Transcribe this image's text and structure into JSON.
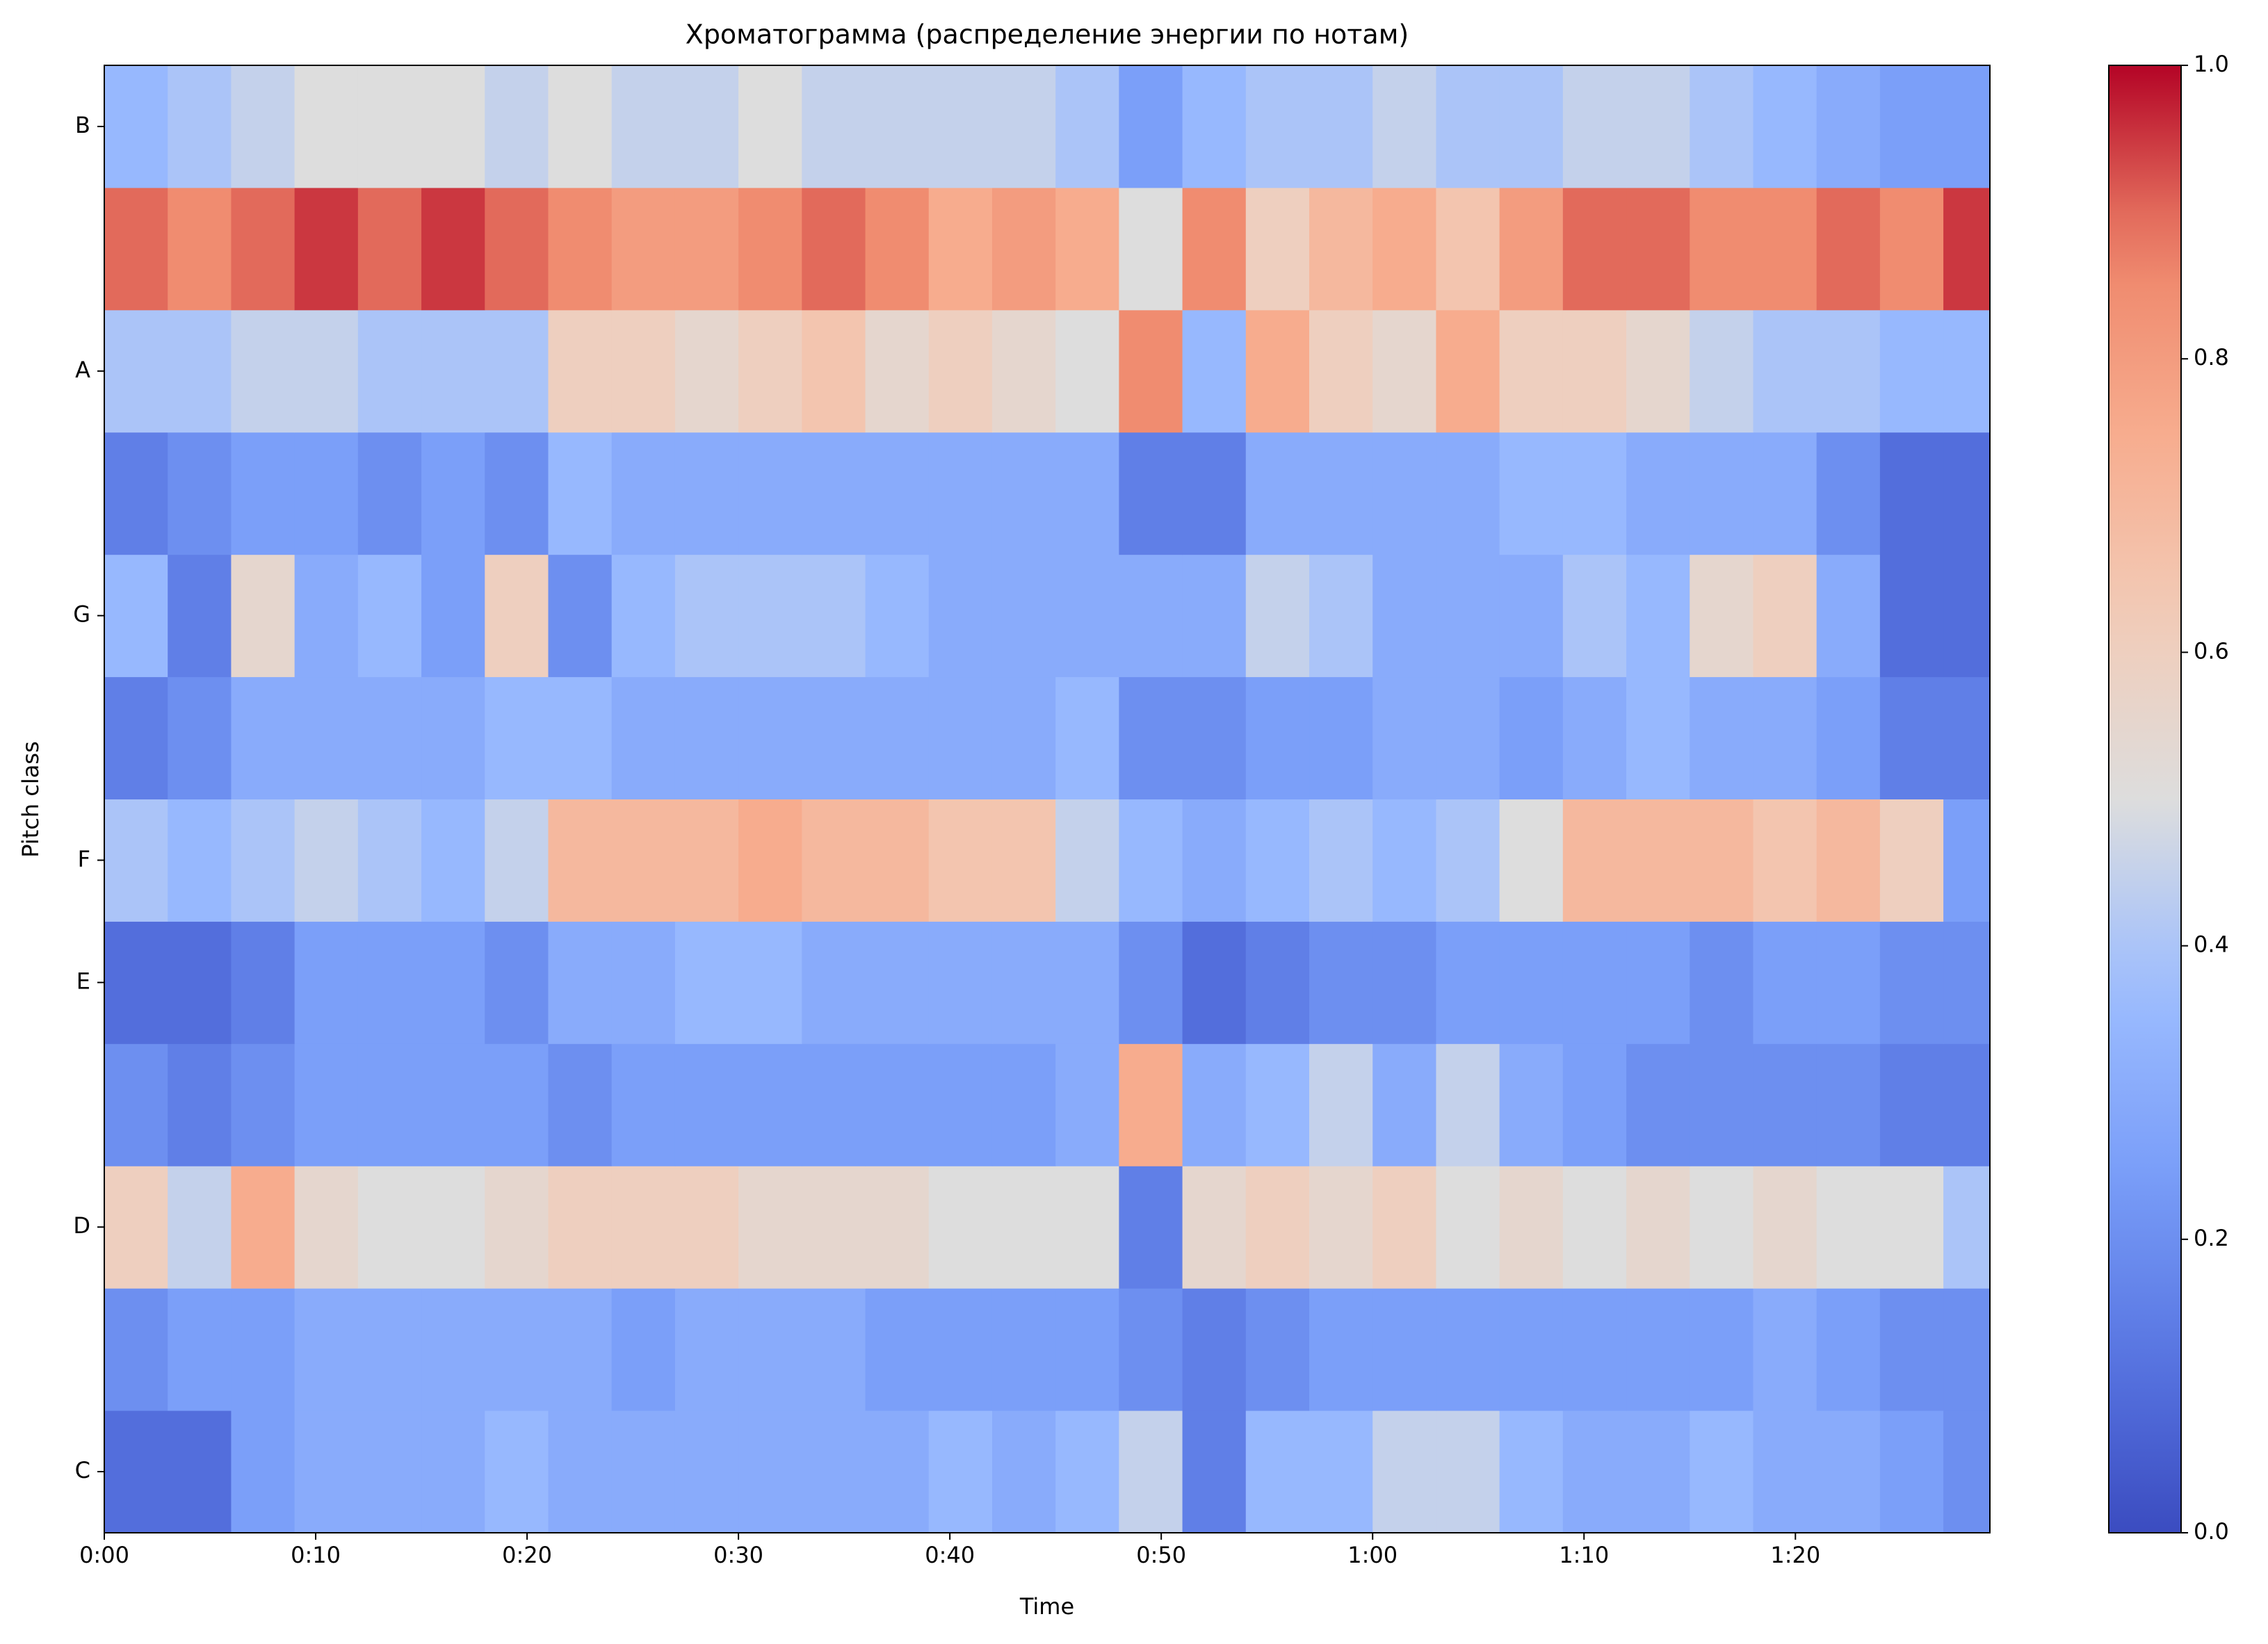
{
  "chart_data": {
    "type": "heatmap",
    "title": "Хроматограмма (распределение энергии по нотам)",
    "x_label": "Time",
    "y_label": "Pitch class",
    "colormap": "coolwarm",
    "x_bins": [
      0,
      3,
      6,
      9,
      12,
      15,
      18,
      21,
      24,
      27,
      30,
      33,
      36,
      39,
      42,
      45,
      48,
      51,
      54,
      57,
      60,
      63,
      66,
      69,
      72,
      75,
      78,
      81,
      84,
      87,
      89.2
    ],
    "xlim": [
      0,
      89.2
    ],
    "xticks": [
      {
        "value": 0,
        "label": "0:00"
      },
      {
        "value": 10,
        "label": "0:10"
      },
      {
        "value": 20,
        "label": "0:20"
      },
      {
        "value": 30,
        "label": "0:30"
      },
      {
        "value": 40,
        "label": "0:40"
      },
      {
        "value": 50,
        "label": "0:50"
      },
      {
        "value": 60,
        "label": "1:00"
      },
      {
        "value": 70,
        "label": "1:10"
      },
      {
        "value": 80,
        "label": "1:20"
      }
    ],
    "y_categories": [
      "C",
      null,
      "D",
      null,
      "E",
      "F",
      null,
      "G",
      null,
      "A",
      null,
      "B"
    ],
    "z": [
      [
        0.1,
        0.1,
        0.25,
        0.3,
        0.3,
        0.3,
        0.35,
        0.3,
        0.3,
        0.3,
        0.3,
        0.3,
        0.3,
        0.35,
        0.3,
        0.35,
        0.45,
        0.15,
        0.35,
        0.35,
        0.45,
        0.45,
        0.35,
        0.3,
        0.3,
        0.35,
        0.3,
        0.3,
        0.25,
        0.2
      ],
      [
        0.2,
        0.25,
        0.25,
        0.3,
        0.3,
        0.3,
        0.3,
        0.3,
        0.25,
        0.3,
        0.3,
        0.3,
        0.25,
        0.25,
        0.25,
        0.25,
        0.2,
        0.15,
        0.2,
        0.25,
        0.25,
        0.25,
        0.25,
        0.25,
        0.25,
        0.25,
        0.3,
        0.25,
        0.2,
        0.2
      ],
      [
        0.6,
        0.45,
        0.75,
        0.55,
        0.5,
        0.5,
        0.55,
        0.6,
        0.6,
        0.6,
        0.55,
        0.55,
        0.55,
        0.5,
        0.5,
        0.5,
        0.15,
        0.55,
        0.6,
        0.55,
        0.6,
        0.5,
        0.55,
        0.5,
        0.55,
        0.5,
        0.55,
        0.5,
        0.5,
        0.4
      ],
      [
        0.2,
        0.15,
        0.2,
        0.25,
        0.25,
        0.25,
        0.25,
        0.2,
        0.25,
        0.25,
        0.25,
        0.25,
        0.25,
        0.25,
        0.25,
        0.3,
        0.75,
        0.3,
        0.35,
        0.45,
        0.3,
        0.45,
        0.3,
        0.25,
        0.2,
        0.2,
        0.2,
        0.2,
        0.15,
        0.15
      ],
      [
        0.1,
        0.1,
        0.15,
        0.25,
        0.25,
        0.25,
        0.2,
        0.3,
        0.3,
        0.35,
        0.35,
        0.3,
        0.3,
        0.3,
        0.3,
        0.3,
        0.2,
        0.1,
        0.15,
        0.2,
        0.2,
        0.25,
        0.25,
        0.25,
        0.25,
        0.2,
        0.25,
        0.25,
        0.2,
        0.2
      ],
      [
        0.4,
        0.35,
        0.4,
        0.45,
        0.4,
        0.35,
        0.45,
        0.7,
        0.7,
        0.7,
        0.75,
        0.7,
        0.7,
        0.65,
        0.65,
        0.45,
        0.35,
        0.3,
        0.35,
        0.4,
        0.35,
        0.4,
        0.5,
        0.7,
        0.7,
        0.7,
        0.65,
        0.7,
        0.6,
        0.25
      ],
      [
        0.15,
        0.2,
        0.3,
        0.3,
        0.3,
        0.3,
        0.35,
        0.35,
        0.3,
        0.3,
        0.3,
        0.3,
        0.3,
        0.3,
        0.3,
        0.35,
        0.2,
        0.2,
        0.25,
        0.25,
        0.3,
        0.3,
        0.25,
        0.3,
        0.35,
        0.3,
        0.3,
        0.25,
        0.15,
        0.15
      ],
      [
        0.35,
        0.15,
        0.55,
        0.3,
        0.35,
        0.25,
        0.6,
        0.2,
        0.35,
        0.4,
        0.4,
        0.4,
        0.35,
        0.3,
        0.3,
        0.3,
        0.3,
        0.3,
        0.45,
        0.4,
        0.3,
        0.3,
        0.3,
        0.4,
        0.35,
        0.55,
        0.6,
        0.3,
        0.1,
        0.1
      ],
      [
        0.15,
        0.2,
        0.25,
        0.25,
        0.2,
        0.25,
        0.2,
        0.35,
        0.3,
        0.3,
        0.3,
        0.3,
        0.3,
        0.3,
        0.3,
        0.3,
        0.15,
        0.15,
        0.3,
        0.3,
        0.3,
        0.3,
        0.35,
        0.35,
        0.3,
        0.3,
        0.3,
        0.2,
        0.1,
        0.1
      ],
      [
        0.4,
        0.4,
        0.45,
        0.45,
        0.4,
        0.4,
        0.4,
        0.6,
        0.6,
        0.55,
        0.6,
        0.65,
        0.55,
        0.6,
        0.55,
        0.5,
        0.85,
        0.35,
        0.75,
        0.6,
        0.55,
        0.75,
        0.6,
        0.6,
        0.55,
        0.45,
        0.4,
        0.4,
        0.35,
        0.35
      ],
      [
        0.9,
        0.85,
        0.9,
        0.95,
        0.9,
        0.95,
        0.9,
        0.85,
        0.8,
        0.8,
        0.85,
        0.9,
        0.85,
        0.75,
        0.8,
        0.75,
        0.5,
        0.85,
        0.6,
        0.7,
        0.75,
        0.65,
        0.8,
        0.9,
        0.9,
        0.85,
        0.85,
        0.9,
        0.85,
        0.95
      ],
      [
        0.35,
        0.4,
        0.45,
        0.5,
        0.5,
        0.5,
        0.45,
        0.5,
        0.45,
        0.45,
        0.5,
        0.45,
        0.45,
        0.45,
        0.45,
        0.4,
        0.25,
        0.35,
        0.4,
        0.4,
        0.45,
        0.4,
        0.4,
        0.45,
        0.45,
        0.4,
        0.35,
        0.3,
        0.25,
        0.25
      ]
    ],
    "clim": [
      0,
      1
    ],
    "cticks": [
      {
        "value": 0,
        "label": "0.0"
      },
      0.2,
      0.4,
      0.6,
      0.8,
      {
        "value": 1,
        "label": "1.0"
      }
    ]
  }
}
